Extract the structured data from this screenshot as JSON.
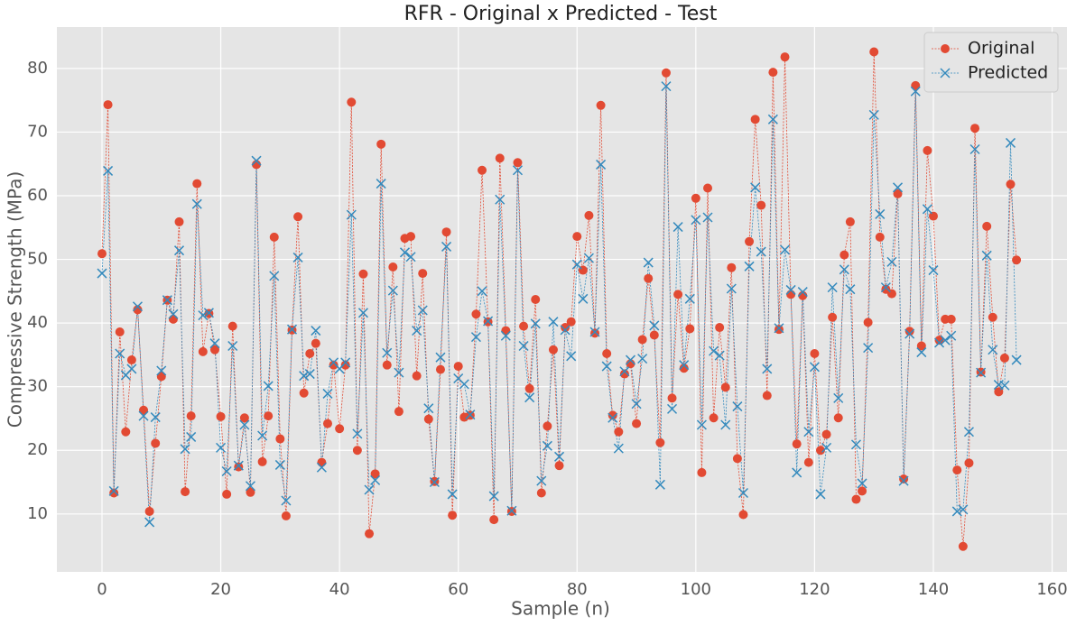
{
  "chart_data": {
    "type": "line",
    "title": "RFR - Original x Predicted - Test",
    "x_label": "Sample (n)",
    "y_label": "Compressive Strength (MPa)",
    "x": [
      0,
      1,
      2,
      3,
      4,
      5,
      6,
      7,
      8,
      9,
      10,
      11,
      12,
      13,
      14,
      15,
      16,
      17,
      18,
      19,
      20,
      21,
      22,
      23,
      24,
      25,
      26,
      27,
      28,
      29,
      30,
      31,
      32,
      33,
      34,
      35,
      36,
      37,
      38,
      39,
      40,
      41,
      42,
      43,
      44,
      45,
      46,
      47,
      48,
      49,
      50,
      51,
      52,
      53,
      54,
      55,
      56,
      57,
      58,
      59,
      60,
      61,
      62,
      63,
      64,
      65,
      66,
      67,
      68,
      69,
      70,
      71,
      72,
      73,
      74,
      75,
      76,
      77,
      78,
      79,
      80,
      81,
      82,
      83,
      84,
      85,
      86,
      87,
      88,
      89,
      90,
      91,
      92,
      93,
      94,
      95,
      96,
      97,
      98,
      99,
      100,
      101,
      102,
      103,
      104,
      105,
      106,
      107,
      108,
      109,
      110,
      111,
      112,
      113,
      114,
      115,
      116,
      117,
      118,
      119,
      120,
      121,
      122,
      123,
      124,
      125,
      126,
      127,
      128,
      129,
      130,
      131,
      132,
      133,
      134,
      135,
      136,
      137,
      138,
      139,
      140,
      141,
      142,
      143,
      144,
      145,
      146,
      147,
      148,
      149,
      150,
      151,
      152,
      153,
      154
    ],
    "series": [
      {
        "name": "Original",
        "color": "#E24A33",
        "marker": "o",
        "values": [
          50.9,
          74.3,
          13.3,
          38.6,
          22.9,
          34.2,
          42.1,
          26.3,
          10.4,
          21.1,
          31.6,
          43.6,
          40.6,
          55.9,
          13.5,
          25.4,
          61.9,
          35.5,
          41.5,
          35.8,
          25.3,
          13.1,
          39.5,
          17.4,
          25.1,
          13.4,
          64.9,
          18.2,
          25.4,
          53.5,
          21.8,
          9.7,
          38.9,
          56.7,
          29.0,
          35.2,
          36.8,
          18.1,
          24.2,
          33.4,
          23.4,
          33.4,
          74.7,
          20.0,
          47.7,
          6.9,
          16.3,
          68.1,
          33.4,
          48.8,
          26.1,
          53.3,
          53.6,
          31.7,
          47.8,
          24.9,
          15.1,
          32.7,
          54.3,
          9.8,
          33.2,
          25.2,
          25.5,
          41.4,
          64.0,
          40.2,
          9.1,
          65.9,
          38.8,
          10.4,
          65.2,
          39.5,
          29.7,
          43.7,
          13.3,
          23.8,
          35.8,
          17.6,
          39.3,
          40.2,
          53.6,
          48.3,
          56.9,
          38.4,
          74.2,
          35.2,
          25.5,
          22.9,
          32.0,
          33.6,
          24.2,
          37.4,
          47.0,
          38.1,
          21.2,
          79.3,
          28.2,
          44.5,
          32.9,
          39.1,
          59.6,
          16.5,
          61.2,
          25.1,
          39.3,
          29.9,
          48.7,
          18.7,
          9.9,
          52.8,
          72.0,
          58.5,
          28.6,
          79.4,
          39.0,
          81.8,
          44.5,
          21.0,
          44.3,
          18.1,
          35.2,
          20.0,
          22.5,
          40.9,
          25.1,
          50.7,
          55.9,
          12.3,
          13.6,
          40.1,
          82.6,
          53.5,
          45.3,
          44.6,
          60.3,
          15.5,
          38.7,
          77.3,
          36.4,
          67.1,
          56.8,
          37.3,
          40.6,
          40.6,
          16.9,
          4.9,
          18.0,
          70.6,
          32.3,
          55.2,
          40.9,
          29.2,
          34.5,
          61.8,
          49.9
        ]
      },
      {
        "name": "Predicted",
        "color": "#348ABD",
        "marker": "x",
        "values": [
          47.8,
          63.9,
          13.6,
          35.2,
          31.8,
          32.8,
          42.6,
          25.4,
          8.7,
          25.2,
          32.5,
          43.6,
          41.4,
          51.4,
          20.2,
          22.1,
          58.7,
          41.2,
          41.6,
          36.8,
          20.4,
          16.7,
          36.4,
          17.6,
          24.0,
          14.4,
          65.5,
          22.3,
          30.1,
          47.4,
          17.7,
          12.1,
          39.0,
          50.3,
          31.7,
          32.0,
          38.8,
          17.3,
          28.9,
          33.8,
          32.8,
          33.8,
          57.0,
          22.6,
          41.6,
          13.8,
          15.3,
          61.9,
          35.3,
          45.1,
          32.2,
          51.1,
          50.4,
          38.8,
          42.0,
          26.6,
          15.0,
          34.6,
          52.0,
          13.1,
          31.3,
          30.4,
          25.6,
          37.8,
          45.0,
          40.3,
          12.8,
          59.4,
          38.0,
          10.5,
          64.0,
          36.4,
          28.3,
          39.9,
          15.2,
          20.7,
          40.2,
          19.0,
          38.9,
          34.8,
          49.2,
          43.8,
          50.2,
          38.6,
          64.9,
          33.2,
          25.1,
          20.3,
          32.4,
          34.2,
          27.3,
          34.4,
          49.5,
          39.6,
          14.6,
          77.2,
          26.5,
          55.1,
          33.4,
          43.8,
          56.2,
          24.0,
          56.6,
          35.6,
          34.9,
          24.0,
          45.4,
          26.9,
          13.3,
          48.9,
          61.3,
          51.2,
          32.8,
          72.0,
          39.2,
          51.5,
          45.2,
          16.5,
          44.9,
          22.9,
          33.1,
          13.1,
          20.4,
          45.6,
          28.2,
          48.4,
          45.3,
          20.9,
          14.8,
          36.1,
          72.7,
          57.1,
          45.6,
          49.6,
          61.3,
          15.2,
          38.3,
          76.4,
          35.4,
          57.9,
          48.3,
          36.9,
          37.3,
          38.0,
          10.4,
          10.7,
          22.9,
          67.3,
          32.2,
          50.6,
          35.8,
          30.3,
          30.2,
          68.3,
          34.2
        ]
      }
    ],
    "xlim": [
      -7.6,
      162.5
    ],
    "ylim": [
      0.9,
      86.5
    ],
    "xticks": [
      0,
      20,
      40,
      60,
      80,
      100,
      120,
      140,
      160
    ],
    "yticks": [
      10,
      20,
      30,
      40,
      50,
      60,
      70,
      80
    ],
    "grid": true,
    "legend": "upper right"
  }
}
